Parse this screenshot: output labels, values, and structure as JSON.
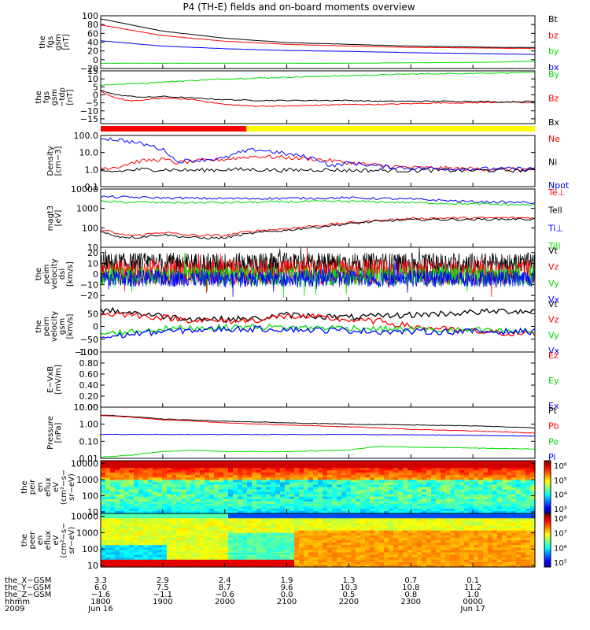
{
  "title": "P4 (TH-E) fields and on-board moments overview",
  "colors": {
    "black": "#000000",
    "red": "#ff0000",
    "green": "#00dd00",
    "blue": "#0000ff",
    "yellow": "#ffff00",
    "bar_red": "#ff0000"
  },
  "status_bar": {
    "red_until_hour": 2.35
  },
  "chart_data": [
    {
      "type": "line",
      "ylabel": [
        "the",
        "fgs",
        "gsm",
        "[nT]"
      ],
      "ylim": [
        -20,
        100
      ],
      "yticks": [
        {
          "v": 100,
          "t": "100"
        },
        {
          "v": 80,
          "t": "80"
        },
        {
          "v": 60,
          "t": "60"
        },
        {
          "v": 40,
          "t": "40"
        },
        {
          "v": 20,
          "t": "20"
        },
        {
          "v": 0,
          "t": "0"
        },
        {
          "v": -20,
          "t": "−20"
        }
      ],
      "series": [
        {
          "name": "Bt",
          "color": "black",
          "x": [
            0,
            1,
            2,
            3,
            4,
            5,
            6,
            6.5,
            7
          ],
          "y": [
            93,
            65,
            49,
            39,
            35,
            31,
            29,
            28,
            28
          ]
        },
        {
          "name": "bz",
          "color": "red",
          "x": [
            0,
            1,
            2,
            3,
            4,
            5,
            6,
            6.5,
            7
          ],
          "y": [
            79,
            55,
            42,
            35,
            31,
            28,
            27,
            26,
            26
          ]
        },
        {
          "name": "by",
          "color": "green",
          "x": [
            0,
            1,
            2,
            3,
            4,
            5,
            6,
            6.5,
            7
          ],
          "y": [
            -8,
            -8,
            -8,
            -8,
            -8,
            -7,
            -6,
            -5,
            -3
          ]
        },
        {
          "name": "bx",
          "color": "blue",
          "x": [
            0,
            1,
            2,
            3,
            4,
            5,
            6,
            6.5,
            7
          ],
          "y": [
            43,
            31,
            25,
            21,
            19,
            16,
            14,
            13,
            12
          ]
        }
      ]
    },
    {
      "type": "line",
      "ylabel": [
        "the",
        "fgs",
        "gsm",
        "−tdp",
        "[nT]"
      ],
      "ylim": [
        -18,
        15
      ],
      "yticks": [
        {
          "v": 15,
          "t": "15"
        },
        {
          "v": 10,
          "t": "10"
        },
        {
          "v": 5,
          "t": "5"
        },
        {
          "v": 0,
          "t": "0"
        },
        {
          "v": -5,
          "t": "−5"
        },
        {
          "v": -10,
          "t": "−10"
        },
        {
          "v": -15,
          "t": "−15"
        }
      ],
      "series": [
        {
          "name": "By",
          "color": "green",
          "x": [
            0,
            1,
            2,
            3,
            4,
            5,
            6,
            7
          ],
          "y": [
            6,
            8,
            10,
            11,
            12,
            13,
            13.5,
            14
          ]
        },
        {
          "name": "Bz",
          "color": "red",
          "x": [
            0,
            0.25,
            0.5,
            0.75,
            1,
            1.5,
            2,
            2.5,
            3,
            3.5,
            4,
            4.5,
            5,
            5.5,
            6,
            6.5,
            7
          ],
          "y": [
            2,
            -2,
            -4,
            -3,
            -2,
            -3,
            -6,
            -7,
            -7,
            -6.5,
            -6,
            -6,
            -5.5,
            -5,
            -5,
            -4.5,
            -5
          ]
        },
        {
          "name": "Bx",
          "color": "black",
          "x": [
            0,
            0.25,
            0.5,
            0.75,
            1,
            1.5,
            2,
            2.5,
            3,
            3.5,
            4,
            4.5,
            5,
            5.5,
            6,
            6.5,
            7
          ],
          "y": [
            3,
            0,
            -1,
            -1.5,
            -1,
            -2,
            -3,
            -3.5,
            -3.5,
            -3.5,
            -3.5,
            -4,
            -4,
            -4,
            -4,
            -4.5,
            -4
          ]
        }
      ]
    },
    {
      "type": "line",
      "ylabel": [
        "Density",
        "[cm−3]"
      ],
      "yscale": "log",
      "ylim": [
        0.1,
        100
      ],
      "yticks": [
        {
          "v": 100,
          "t": "100.0"
        },
        {
          "v": 10,
          "t": "10.0"
        },
        {
          "v": 1,
          "t": "1.0"
        },
        {
          "v": 0.1,
          "t": "0.1"
        }
      ],
      "series": [
        {
          "name": "Ne",
          "color": "red",
          "x": [
            0,
            0.3,
            0.6,
            1,
            1.2,
            1.5,
            2,
            2.5,
            3,
            3.5,
            4,
            4.5,
            5,
            5.5,
            6,
            7
          ],
          "y": [
            1.2,
            1.5,
            3,
            4,
            2.5,
            3,
            4,
            6,
            5,
            4,
            2.5,
            1.7,
            1.3,
            1.2,
            1.1,
            1.0
          ]
        },
        {
          "name": "Ni",
          "color": "black",
          "x": [
            0,
            0.3,
            0.6,
            1,
            1.5,
            2,
            2.5,
            3,
            3.5,
            4,
            4.5,
            5,
            5.5,
            6,
            7
          ],
          "y": [
            0.7,
            0.8,
            1.0,
            1.0,
            0.9,
            1.0,
            1.0,
            0.9,
            1.0,
            0.9,
            0.9,
            0.9,
            0.9,
            0.9,
            0.9
          ]
        },
        {
          "name": "Npot",
          "color": "blue",
          "x": [
            0,
            0.3,
            0.6,
            0.9,
            1.2,
            1.5,
            2,
            2.5,
            3,
            3.5,
            3.7,
            4,
            4.5,
            5,
            6,
            7
          ],
          "y": [
            70,
            55,
            35,
            20,
            3,
            3.5,
            4.5,
            15,
            8,
            4,
            1.5,
            2.5,
            1.5,
            1.2,
            1.1,
            1.1
          ]
        }
      ]
    },
    {
      "type": "line",
      "ylabel": [
        "magt3",
        "[eV]"
      ],
      "yscale": "log",
      "ylim": [
        10,
        10000
      ],
      "yticks": [
        {
          "v": 10000,
          "t": "10000"
        },
        {
          "v": 1000,
          "t": "1000"
        },
        {
          "v": 100,
          "t": "100"
        },
        {
          "v": 10,
          "t": "10"
        }
      ],
      "series": [
        {
          "name": "Te⊥",
          "color": "red",
          "x": [
            0,
            0.3,
            0.6,
            1,
            1.3,
            1.6,
            2,
            2.5,
            3,
            3.5,
            4,
            4.5,
            5,
            5.5,
            6,
            6.5,
            7
          ],
          "y": [
            80,
            45,
            40,
            60,
            45,
            40,
            40,
            70,
            90,
            130,
            180,
            240,
            300,
            320,
            320,
            330,
            330
          ]
        },
        {
          "name": "Tell",
          "color": "black",
          "x": [
            0,
            0.3,
            0.6,
            1,
            1.3,
            1.6,
            2,
            2.5,
            3,
            3.5,
            4,
            4.5,
            5,
            5.5,
            6,
            6.5,
            7
          ],
          "y": [
            60,
            35,
            32,
            45,
            35,
            30,
            30,
            55,
            75,
            110,
            160,
            220,
            260,
            270,
            270,
            280,
            280
          ]
        },
        {
          "name": "Ti⊥",
          "color": "blue",
          "x": [
            0,
            1,
            2,
            3,
            4,
            5,
            6,
            7
          ],
          "y": [
            4000,
            3500,
            3200,
            3300,
            3500,
            3000,
            2200,
            2000
          ]
        },
        {
          "name": "Till",
          "color": "green",
          "x": [
            0,
            1,
            2,
            3,
            4,
            5,
            6,
            7
          ],
          "y": [
            2200,
            2000,
            2000,
            2200,
            2300,
            2000,
            1700,
            1500
          ]
        }
      ]
    },
    {
      "type": "line",
      "ylabel": [
        "the",
        "peim",
        "velocity",
        "dsl",
        "[km/s]"
      ],
      "ylim": [
        -25,
        25
      ],
      "yticks": [
        {
          "v": 20,
          "t": "20"
        },
        {
          "v": 10,
          "t": "10"
        },
        {
          "v": 0,
          "t": "0"
        },
        {
          "v": -10,
          "t": "−10"
        },
        {
          "v": -20,
          "t": "−20"
        }
      ],
      "series": [
        {
          "name": "Vt",
          "color": "black",
          "x": [
            0,
            7
          ],
          "y": [
            10,
            10
          ]
        },
        {
          "name": "Vz",
          "color": "red",
          "x": [
            0,
            7
          ],
          "y": [
            2,
            2
          ]
        },
        {
          "name": "Vy",
          "color": "green",
          "x": [
            0,
            7
          ],
          "y": [
            -2,
            -2
          ]
        },
        {
          "name": "Vx",
          "color": "blue",
          "x": [
            0,
            7
          ],
          "y": [
            -4,
            -4
          ]
        }
      ]
    },
    {
      "type": "line",
      "ylabel": [
        "the",
        "peim",
        "velocity",
        "gsm",
        "[km/s]"
      ],
      "ylim": [
        -100,
        100
      ],
      "yticks": [
        {
          "v": 100,
          "t": ""
        },
        {
          "v": 50,
          "t": "50"
        },
        {
          "v": 0,
          "t": "0"
        },
        {
          "v": -50,
          "t": "−50"
        },
        {
          "v": -100,
          "t": "−100"
        }
      ],
      "series": [
        {
          "name": "Vt",
          "color": "black",
          "x": [
            0,
            0.5,
            1,
            1.5,
            2,
            2.5,
            3,
            3.5,
            4,
            4.5,
            5,
            5.5,
            6,
            6.5,
            7
          ],
          "y": [
            65,
            55,
            40,
            30,
            28,
            30,
            45,
            40,
            35,
            40,
            45,
            50,
            55,
            60,
            60
          ]
        },
        {
          "name": "Vz",
          "color": "red",
          "x": [
            0,
            0.5,
            1,
            1.5,
            2,
            2.5,
            3,
            3.5,
            4,
            4.5,
            5,
            5.5,
            6,
            6.5,
            7
          ],
          "y": [
            50,
            45,
            35,
            25,
            20,
            25,
            40,
            35,
            25,
            20,
            0,
            -10,
            -20,
            -25,
            -30
          ]
        },
        {
          "name": "Vy",
          "color": "green",
          "x": [
            0,
            0.5,
            1,
            1.5,
            2,
            2.5,
            3,
            3.5,
            4,
            4.5,
            5,
            5.5,
            6,
            6.5,
            7
          ],
          "y": [
            -30,
            -20,
            -10,
            -5,
            -5,
            0,
            -5,
            -5,
            -5,
            -10,
            -10,
            -15,
            -15,
            -20,
            -20
          ]
        },
        {
          "name": "Vx",
          "color": "blue",
          "x": [
            0,
            0.5,
            1,
            1.5,
            2,
            2.5,
            3,
            3.5,
            4,
            4.5,
            5,
            5.5,
            6,
            6.5,
            7
          ],
          "y": [
            -45,
            -30,
            -20,
            -15,
            -10,
            -10,
            -10,
            -15,
            -15,
            -20,
            -20,
            -20,
            -20,
            -20,
            -20
          ]
        }
      ]
    },
    {
      "type": "line",
      "ylabel": [
        "E−VxB",
        "[mV/m]"
      ],
      "ylim": [
        0,
        1
      ],
      "yticks": [
        {
          "v": 1,
          "t": "1.00"
        },
        {
          "v": 0.8,
          "t": "0.80"
        },
        {
          "v": 0.6,
          "t": "0.60"
        },
        {
          "v": 0.4,
          "t": "0.40"
        },
        {
          "v": 0.2,
          "t": "0.20"
        },
        {
          "v": 0,
          "t": "0.00"
        }
      ],
      "series": [
        {
          "name": "Ez",
          "color": "red",
          "x": [],
          "y": []
        },
        {
          "name": "Ey",
          "color": "green",
          "x": [],
          "y": []
        },
        {
          "name": "Ex",
          "color": "blue",
          "x": [],
          "y": []
        }
      ]
    },
    {
      "type": "line",
      "ylabel": [
        "Pressure",
        "[nPa]"
      ],
      "yscale": "log",
      "ylim": [
        0.01,
        10
      ],
      "yticks": [
        {
          "v": 10,
          "t": "10.00"
        },
        {
          "v": 1,
          "t": "1.00"
        },
        {
          "v": 0.1,
          "t": "0.10"
        },
        {
          "v": 0.01,
          "t": "0.01"
        }
      ],
      "series": [
        {
          "name": "Pt",
          "color": "black",
          "x": [
            0,
            1,
            2,
            3,
            4,
            5,
            6,
            7
          ],
          "y": [
            3.5,
            2.0,
            1.5,
            1.2,
            1.0,
            0.9,
            0.8,
            0.6
          ]
        },
        {
          "name": "Pb",
          "color": "red",
          "x": [
            0,
            1,
            2,
            3,
            4,
            5,
            6,
            7
          ],
          "y": [
            3.3,
            1.8,
            1.2,
            0.9,
            0.7,
            0.5,
            0.4,
            0.3
          ]
        },
        {
          "name": "Pe",
          "color": "green",
          "x": [
            0,
            0.5,
            1,
            1.5,
            2,
            3,
            4,
            4.5,
            5,
            6,
            7
          ],
          "y": [
            0.012,
            0.015,
            0.025,
            0.03,
            0.025,
            0.025,
            0.03,
            0.05,
            0.045,
            0.04,
            0.035
          ]
        },
        {
          "name": "Pi",
          "color": "blue",
          "x": [
            0,
            1,
            2,
            3,
            4,
            5,
            6,
            7
          ],
          "y": [
            0.25,
            0.25,
            0.25,
            0.25,
            0.25,
            0.24,
            0.22,
            0.2
          ]
        }
      ]
    },
    {
      "type": "heatmap",
      "ylabel": [
        "the",
        "peir",
        "en",
        "eflux",
        "eV",
        "(cm²−s−",
        "sr−eV)"
      ],
      "yscale": "log",
      "ylim": [
        8,
        15000
      ],
      "yticks": [
        {
          "v": 10000,
          "t": "10000"
        },
        {
          "v": 1000,
          "t": "1000"
        },
        {
          "v": 100,
          "t": "100"
        },
        {
          "v": 10,
          "t": "10"
        }
      ],
      "colorbar": {
        "labels": [
          "10⁶",
          "10⁵",
          "10⁴",
          "10³"
        ]
      }
    },
    {
      "type": "heatmap",
      "ylabel": [
        "the",
        "peer",
        "en",
        "eflux",
        "eV",
        "(cm²−s−",
        "sr−eV)"
      ],
      "yscale": "log",
      "ylim": [
        8,
        15000
      ],
      "yticks": [
        {
          "v": 10000,
          "t": "10000"
        },
        {
          "v": 1000,
          "t": "1000"
        },
        {
          "v": 100,
          "t": "100"
        },
        {
          "v": 10,
          "t": "10"
        }
      ],
      "colorbar": {
        "labels": [
          "10⁸",
          "10⁷",
          "10⁶",
          "10⁵"
        ]
      }
    }
  ],
  "xaxis": {
    "rows": [
      {
        "label": "the_X−GSM",
        "values": [
          "3.3",
          "2.9",
          "2.4",
          "1.9",
          "1.3",
          "0.7",
          "0.1"
        ]
      },
      {
        "label": "the_Y−GSM",
        "values": [
          "6.0",
          "7.5",
          "8.7",
          "9.6",
          "10.3",
          "10.8",
          "11.2"
        ]
      },
      {
        "label": "the_Z−GSM",
        "values": [
          "−1.6",
          "−1.1",
          "−0.6",
          "0.0",
          "0.5",
          "0.8",
          "1.0"
        ]
      },
      {
        "label": "hhmm",
        "values": [
          "1800",
          "1900",
          "2000",
          "2100",
          "2200",
          "2300",
          "0000"
        ]
      },
      {
        "label": "2009",
        "values": [
          "Jun 16",
          "",
          "",
          "",
          "",
          "",
          "Jun 17"
        ]
      }
    ]
  }
}
